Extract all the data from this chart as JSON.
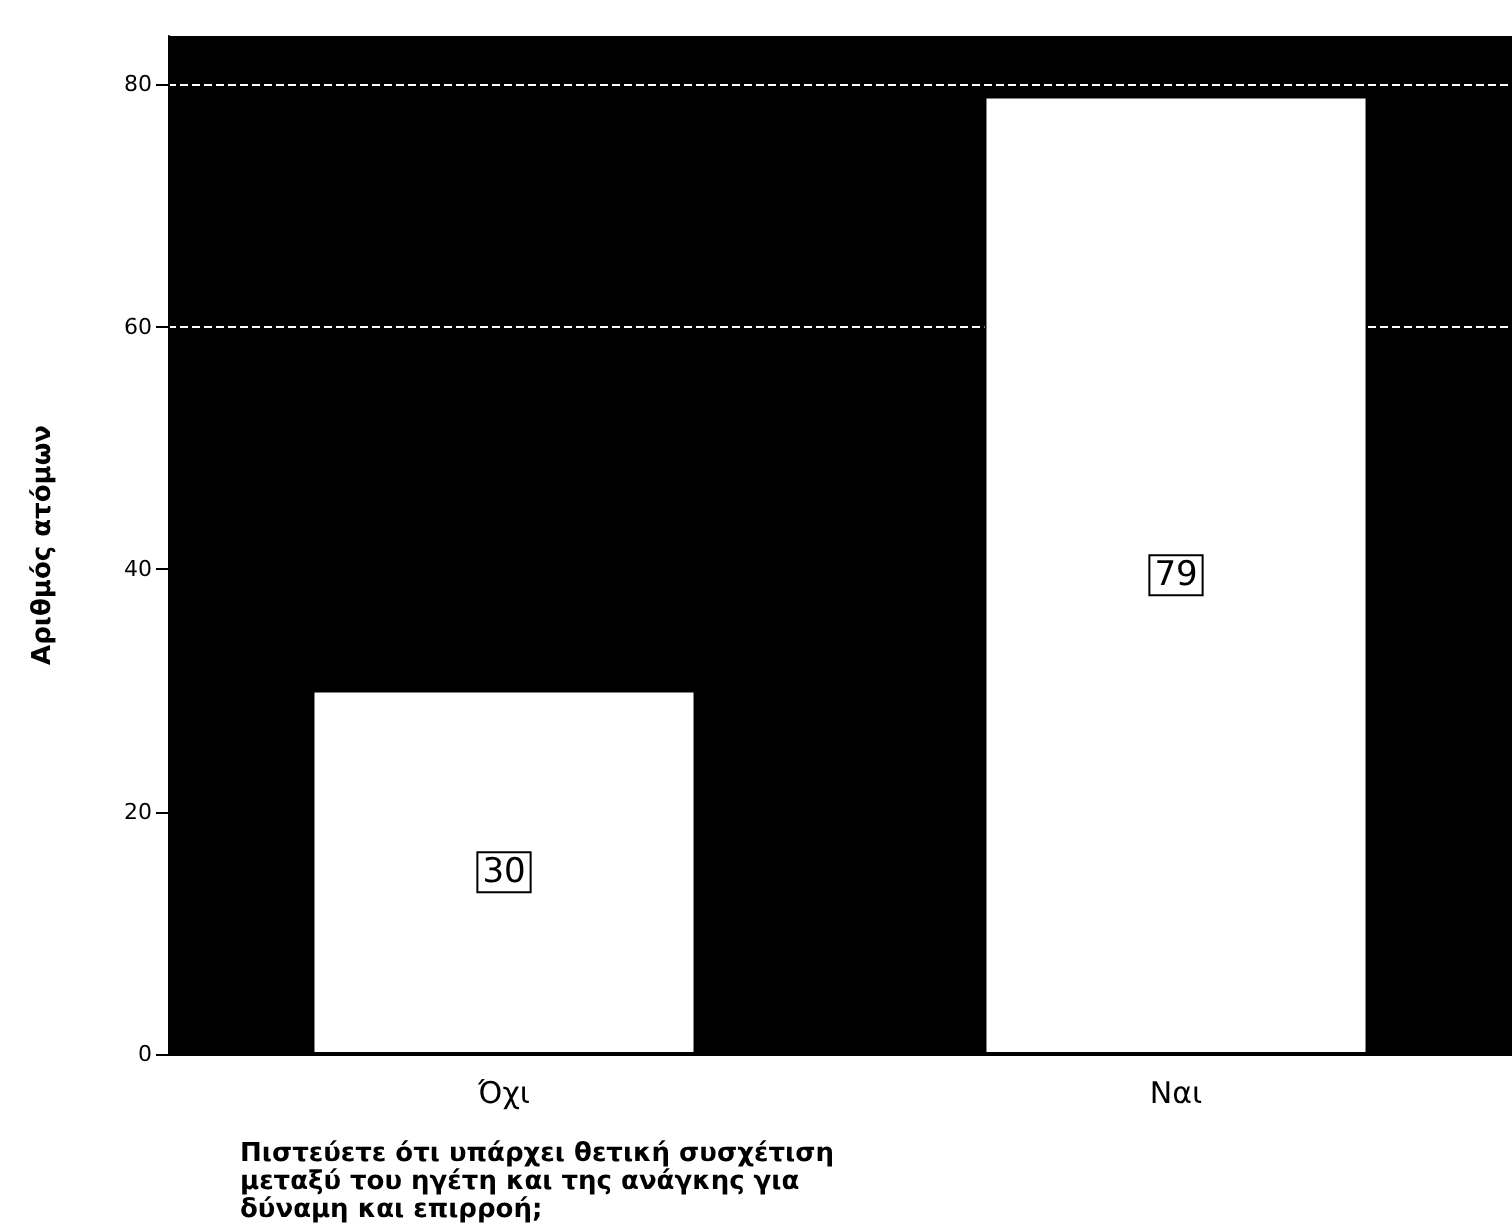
{
  "chart_data": {
    "type": "bar",
    "categories": [
      "Όχι",
      "Ναι"
    ],
    "values": [
      30,
      79
    ],
    "color": "#ffffff",
    "xlabel": "Πιστεύετε ότι υπάρχει θετική συσχέτιση μεταξύ του ηγέτη και της ανάγκης για δύναμη και επιρροή;",
    "ylabel": "Αριθμός ατόμων",
    "ylim": [
      0,
      84
    ],
    "yticks": [
      0,
      20,
      40,
      60,
      80
    ],
    "data_labels": true,
    "ref_lines": [
      {
        "axis": "y",
        "value": 60,
        "color": "#ffffff",
        "line_style": "dashed"
      },
      {
        "axis": "y",
        "value": 80,
        "color": "#ffffff",
        "line_style": "dashed"
      }
    ]
  }
}
